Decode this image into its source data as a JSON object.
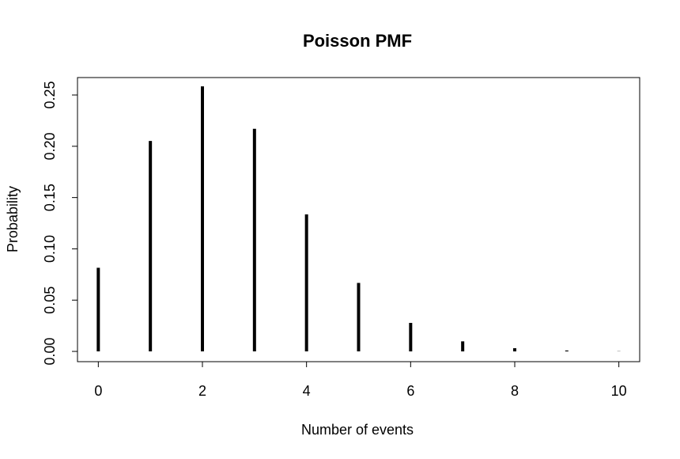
{
  "chart_data": {
    "type": "bar",
    "title": "Poisson PMF",
    "xlabel": "Number of events",
    "ylabel": "Probability",
    "x": [
      0,
      1,
      2,
      3,
      4,
      5,
      6,
      7,
      8,
      9,
      10
    ],
    "values": [
      0.0815,
      0.2052,
      0.2584,
      0.217,
      0.1336,
      0.0668,
      0.0278,
      0.0098,
      0.0031,
      0.0009,
      0.0002
    ],
    "xlim": [
      -0.4,
      10.4
    ],
    "ylim": [
      -0.01,
      0.267
    ],
    "xticks": [
      "0",
      "2",
      "4",
      "6",
      "8",
      "10"
    ],
    "xtick_values": [
      0,
      2,
      4,
      6,
      8,
      10
    ],
    "yticks": [
      "0.00",
      "0.05",
      "0.10",
      "0.15",
      "0.20",
      "0.25"
    ],
    "ytick_values": [
      0.0,
      0.05,
      0.1,
      0.15,
      0.2,
      0.25
    ],
    "grid": false,
    "legend": "none",
    "bar_color": "#000000"
  }
}
